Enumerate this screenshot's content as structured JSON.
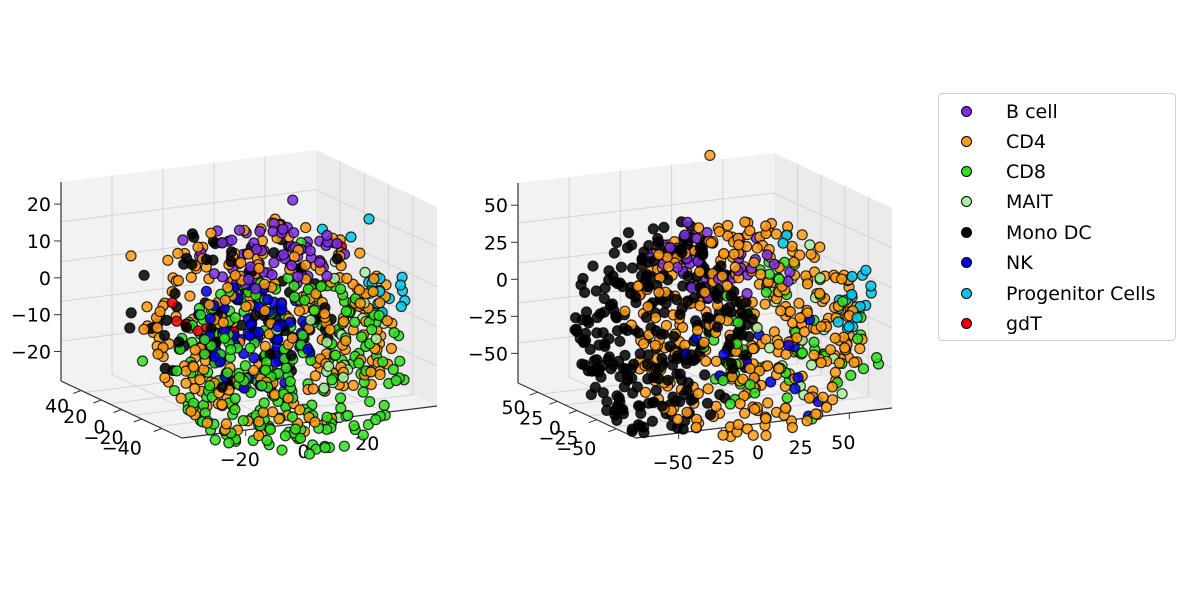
{
  "chart_data": [
    {
      "type": "scatter",
      "dims": 3,
      "title": "",
      "xlabel": "",
      "ylabel": "",
      "zlabel": "",
      "grid": true,
      "x_ticks": [
        "−20",
        "0",
        "20"
      ],
      "y_ticks": [
        "40",
        "20",
        "0",
        "−20",
        "−40"
      ],
      "z_ticks": [
        "20",
        "10",
        "0",
        "−10",
        "−20"
      ],
      "xlim": [
        -35,
        35
      ],
      "ylim": [
        -45,
        45
      ],
      "zlim": [
        -27,
        27
      ],
      "series": [
        {
          "name": "B cell",
          "color": "#7b2be2",
          "x": [
            -20,
            -10,
            -5,
            5,
            12
          ],
          "y": [
            5,
            20,
            -10,
            15,
            0
          ],
          "z": [
            18,
            22,
            16,
            20,
            24
          ]
        },
        {
          "name": "CD4",
          "color": "#ff9a13",
          "x": [
            -30,
            -25,
            -15,
            10,
            25,
            20
          ],
          "y": [
            10,
            -20,
            30,
            -15,
            5,
            -30
          ],
          "z": [
            -5,
            10,
            18,
            -18,
            2,
            -10
          ]
        },
        {
          "name": "CD8",
          "color": "#30e01f",
          "x": [
            -20,
            -5,
            5,
            18,
            28
          ],
          "y": [
            -25,
            0,
            20,
            -10,
            15
          ],
          "z": [
            -20,
            -12,
            5,
            10,
            0
          ]
        },
        {
          "name": "MAIT",
          "color": "#a8f0a0",
          "x": [
            25,
            30,
            15,
            20
          ],
          "y": [
            -10,
            5,
            -20,
            10
          ],
          "z": [
            -22,
            3,
            -15,
            8
          ]
        },
        {
          "name": "Mono DC",
          "color": "#000000",
          "x": [
            -30,
            -10,
            5,
            15
          ],
          "y": [
            20,
            -15,
            10,
            25
          ],
          "z": [
            0,
            15,
            20,
            12
          ]
        },
        {
          "name": "NK",
          "color": "#0000e6",
          "x": [
            -12,
            -5,
            0,
            6,
            -8
          ],
          "y": [
            -5,
            5,
            0,
            8,
            -10
          ],
          "z": [
            -5,
            2,
            6,
            -2,
            0
          ]
        },
        {
          "name": "Progenitor Cells",
          "color": "#00c8e8",
          "x": [
            28,
            30,
            22
          ],
          "y": [
            0,
            8,
            -5
          ],
          "z": [
            12,
            18,
            14
          ]
        },
        {
          "name": "gdT",
          "color": "#f20000",
          "x": [
            -18,
            -24,
            18
          ],
          "y": [
            -5,
            8,
            20
          ],
          "z": [
            -6,
            2,
            14
          ]
        }
      ]
    },
    {
      "type": "scatter",
      "dims": 3,
      "title": "",
      "xlabel": "",
      "ylabel": "",
      "zlabel": "",
      "grid": true,
      "x_ticks": [
        "−50",
        "−25",
        "0",
        "25",
        "50"
      ],
      "y_ticks": [
        "50",
        "25",
        "0",
        "−25",
        "−50"
      ],
      "z_ticks": [
        "50",
        "25",
        "0",
        "−25",
        "−50"
      ],
      "xlim": [
        -70,
        70
      ],
      "ylim": [
        -70,
        70
      ],
      "zlim": [
        -65,
        70
      ],
      "series": [
        {
          "name": "B cell",
          "color": "#7b2be2",
          "x": [
            -20,
            -5,
            10
          ],
          "y": [
            10,
            -10,
            20
          ],
          "z": [
            40,
            50,
            45
          ]
        },
        {
          "name": "CD4",
          "color": "#ff9a13",
          "x": [
            -10,
            0,
            15,
            30,
            5,
            20
          ],
          "y": [
            0,
            15,
            -20,
            10,
            -5,
            25
          ],
          "z": [
            20,
            0,
            -30,
            10,
            95,
            40
          ]
        },
        {
          "name": "CD8",
          "color": "#30e01f",
          "x": [
            20,
            40,
            35
          ],
          "y": [
            -10,
            10,
            0
          ],
          "z": [
            -20,
            0,
            20
          ]
        },
        {
          "name": "MAIT",
          "color": "#a8f0a0",
          "x": [
            50,
            55
          ],
          "y": [
            -20,
            5
          ],
          "z": [
            10,
            30
          ]
        },
        {
          "name": "Mono DC",
          "color": "#000000",
          "x": [
            -50,
            -40,
            -35,
            -20,
            -45
          ],
          "y": [
            0,
            20,
            -25,
            10,
            -10
          ],
          "z": [
            0,
            20,
            -30,
            -45,
            35
          ]
        },
        {
          "name": "NK",
          "color": "#0000e6",
          "x": [
            15,
            25
          ],
          "y": [
            0,
            10
          ],
          "z": [
            -35,
            -25
          ]
        },
        {
          "name": "Progenitor Cells",
          "color": "#00c8e8",
          "x": [
            40,
            45
          ],
          "y": [
            10,
            -5
          ],
          "z": [
            40,
            30
          ]
        },
        {
          "name": "gdT",
          "color": "#f20000",
          "x": [],
          "y": [],
          "z": []
        }
      ]
    }
  ],
  "legend": {
    "placement": "right",
    "entries": [
      {
        "label": "B cell",
        "color": "#7b2be2"
      },
      {
        "label": "CD4",
        "color": "#ff9a13"
      },
      {
        "label": "CD8",
        "color": "#30e01f"
      },
      {
        "label": "MAIT",
        "color": "#a8f0a0"
      },
      {
        "label": "Mono DC",
        "color": "#000000"
      },
      {
        "label": "NK",
        "color": "#0000e6"
      },
      {
        "label": "Progenitor Cells",
        "color": "#00c8e8"
      },
      {
        "label": "gdT",
        "color": "#f20000"
      }
    ]
  }
}
